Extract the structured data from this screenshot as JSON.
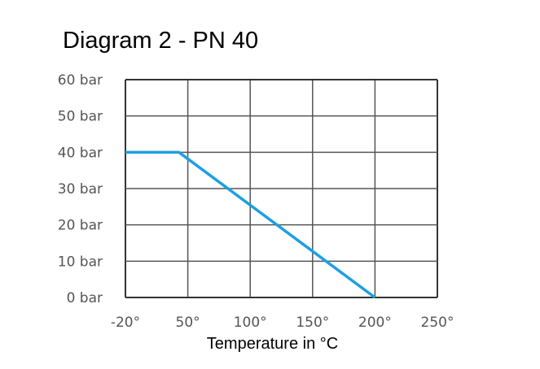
{
  "chart_data": {
    "type": "line",
    "title": "Diagram 2 - PN 40",
    "xlabel": "Temperature in °C",
    "ylabel": "",
    "x_ticks": [
      -20,
      50,
      100,
      150,
      200,
      250
    ],
    "x_tick_labels": [
      "-20°",
      "50°",
      "100°",
      "150°",
      "200°",
      "250°"
    ],
    "y_ticks": [
      0,
      10,
      20,
      30,
      40,
      50,
      60
    ],
    "y_tick_labels": [
      "0 bar",
      "10 bar",
      "20 bar",
      "30 bar",
      "40 bar",
      "50 bar",
      "60 bar"
    ],
    "xlim": [
      -20,
      250
    ],
    "ylim": [
      0,
      60
    ],
    "grid": true,
    "series": [
      {
        "x": [
          -20,
          40,
          200
        ],
        "y": [
          40,
          40,
          0
        ],
        "color": "#1ca0e0"
      }
    ]
  }
}
